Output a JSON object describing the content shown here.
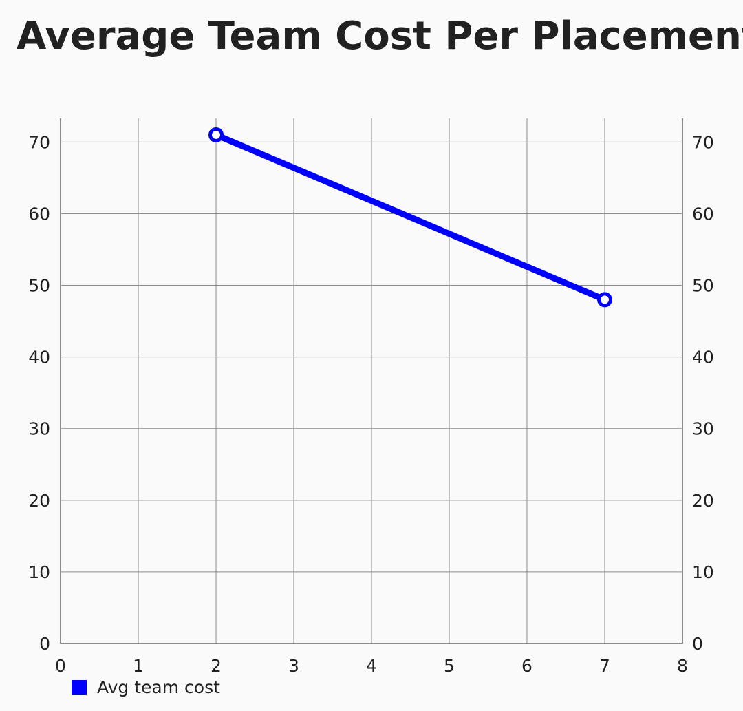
{
  "chart_data": {
    "type": "line",
    "title": "Average Team Cost Per Placement",
    "x_ticks": [
      "0",
      "1",
      "2",
      "3",
      "4",
      "5",
      "6",
      "7",
      "8"
    ],
    "y_ticks": [
      "0",
      "10",
      "20",
      "30",
      "40",
      "50",
      "60",
      "70"
    ],
    "xlim": [
      0,
      8
    ],
    "ylim": [
      0,
      73.3
    ],
    "grid": true,
    "secondary_y_axis": true,
    "legend_position": "bottom-left",
    "series": [
      {
        "name": "Avg team cost",
        "color": "#0000ff",
        "marker": "hollow-circle",
        "x": [
          2,
          7
        ],
        "y": [
          71,
          48
        ]
      }
    ]
  }
}
